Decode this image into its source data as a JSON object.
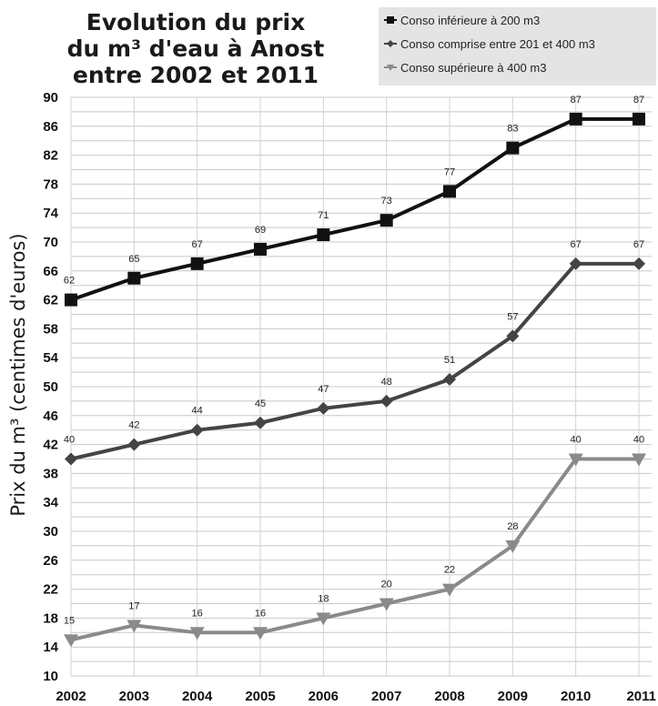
{
  "chart_data": {
    "type": "line",
    "title_lines": [
      "Evolution du prix",
      "du m³ d'eau à Anost",
      "entre 2002 et 2011"
    ],
    "xlabel": "",
    "ylabel": "Prix du m³ (centimes d'euros)",
    "categories": [
      "2002",
      "2003",
      "2004",
      "2005",
      "2006",
      "2007",
      "2008",
      "2009",
      "2010",
      "2011"
    ],
    "ylim": [
      10,
      90
    ],
    "yticks": [
      10,
      14,
      18,
      22,
      26,
      30,
      34,
      38,
      42,
      46,
      50,
      54,
      58,
      62,
      66,
      70,
      74,
      78,
      82,
      86,
      90
    ],
    "grid": true,
    "legend_position": "top-right",
    "series": [
      {
        "name": "Conso inférieure à 200 m3",
        "values": [
          62,
          65,
          67,
          69,
          71,
          73,
          77,
          83,
          87,
          87
        ],
        "color": "#111111",
        "marker": "square"
      },
      {
        "name": "Conso comprise entre 201 et 400 m3",
        "values": [
          40,
          42,
          44,
          45,
          47,
          48,
          51,
          57,
          67,
          67
        ],
        "color": "#444444",
        "marker": "diamond"
      },
      {
        "name": "Conso supérieure à 400 m3",
        "values": [
          15,
          17,
          16,
          16,
          18,
          20,
          22,
          28,
          40,
          40
        ],
        "color": "#8a8a8a",
        "marker": "triangle-down"
      }
    ]
  }
}
